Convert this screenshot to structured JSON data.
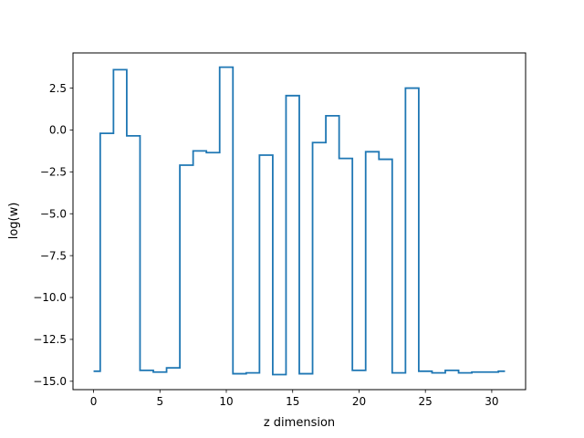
{
  "chart_data": {
    "type": "line",
    "drawstyle": "steps-mid",
    "xlabel": "z dimension",
    "ylabel": "log(w)",
    "xlim": [
      -1.55,
      32.55
    ],
    "ylim": [
      -15.5,
      4.6
    ],
    "xticks": [
      0,
      5,
      10,
      15,
      20,
      25,
      30
    ],
    "xtick_labels": [
      "0",
      "5",
      "10",
      "15",
      "20",
      "25",
      "30"
    ],
    "yticks": [
      -15.0,
      -12.5,
      -10.0,
      -7.5,
      -5.0,
      -2.5,
      0.0,
      2.5
    ],
    "ytick_labels": [
      "−15.0",
      "−12.5",
      "−10.0",
      "−7.5",
      "−5.0",
      "−2.5",
      "0.0",
      "2.5"
    ],
    "grid": false,
    "series": [
      {
        "color": "#1f77b4",
        "x": [
          0,
          1,
          2,
          3,
          4,
          5,
          6,
          7,
          8,
          9,
          10,
          11,
          12,
          13,
          14,
          15,
          16,
          17,
          18,
          19,
          20,
          21,
          22,
          23,
          24,
          25,
          26,
          27,
          28,
          29,
          30,
          31
        ],
        "values": [
          -14.4,
          -0.2,
          3.6,
          -0.35,
          -14.35,
          -14.45,
          -14.2,
          -2.1,
          -1.25,
          -1.35,
          3.75,
          -14.55,
          -14.5,
          -1.5,
          -14.6,
          2.05,
          -14.55,
          -0.75,
          0.85,
          -1.7,
          -14.35,
          -1.3,
          -1.75,
          -14.5,
          2.5,
          -14.4,
          -14.5,
          -14.35,
          -14.5,
          -14.45,
          -14.45,
          -14.4
        ]
      }
    ]
  }
}
